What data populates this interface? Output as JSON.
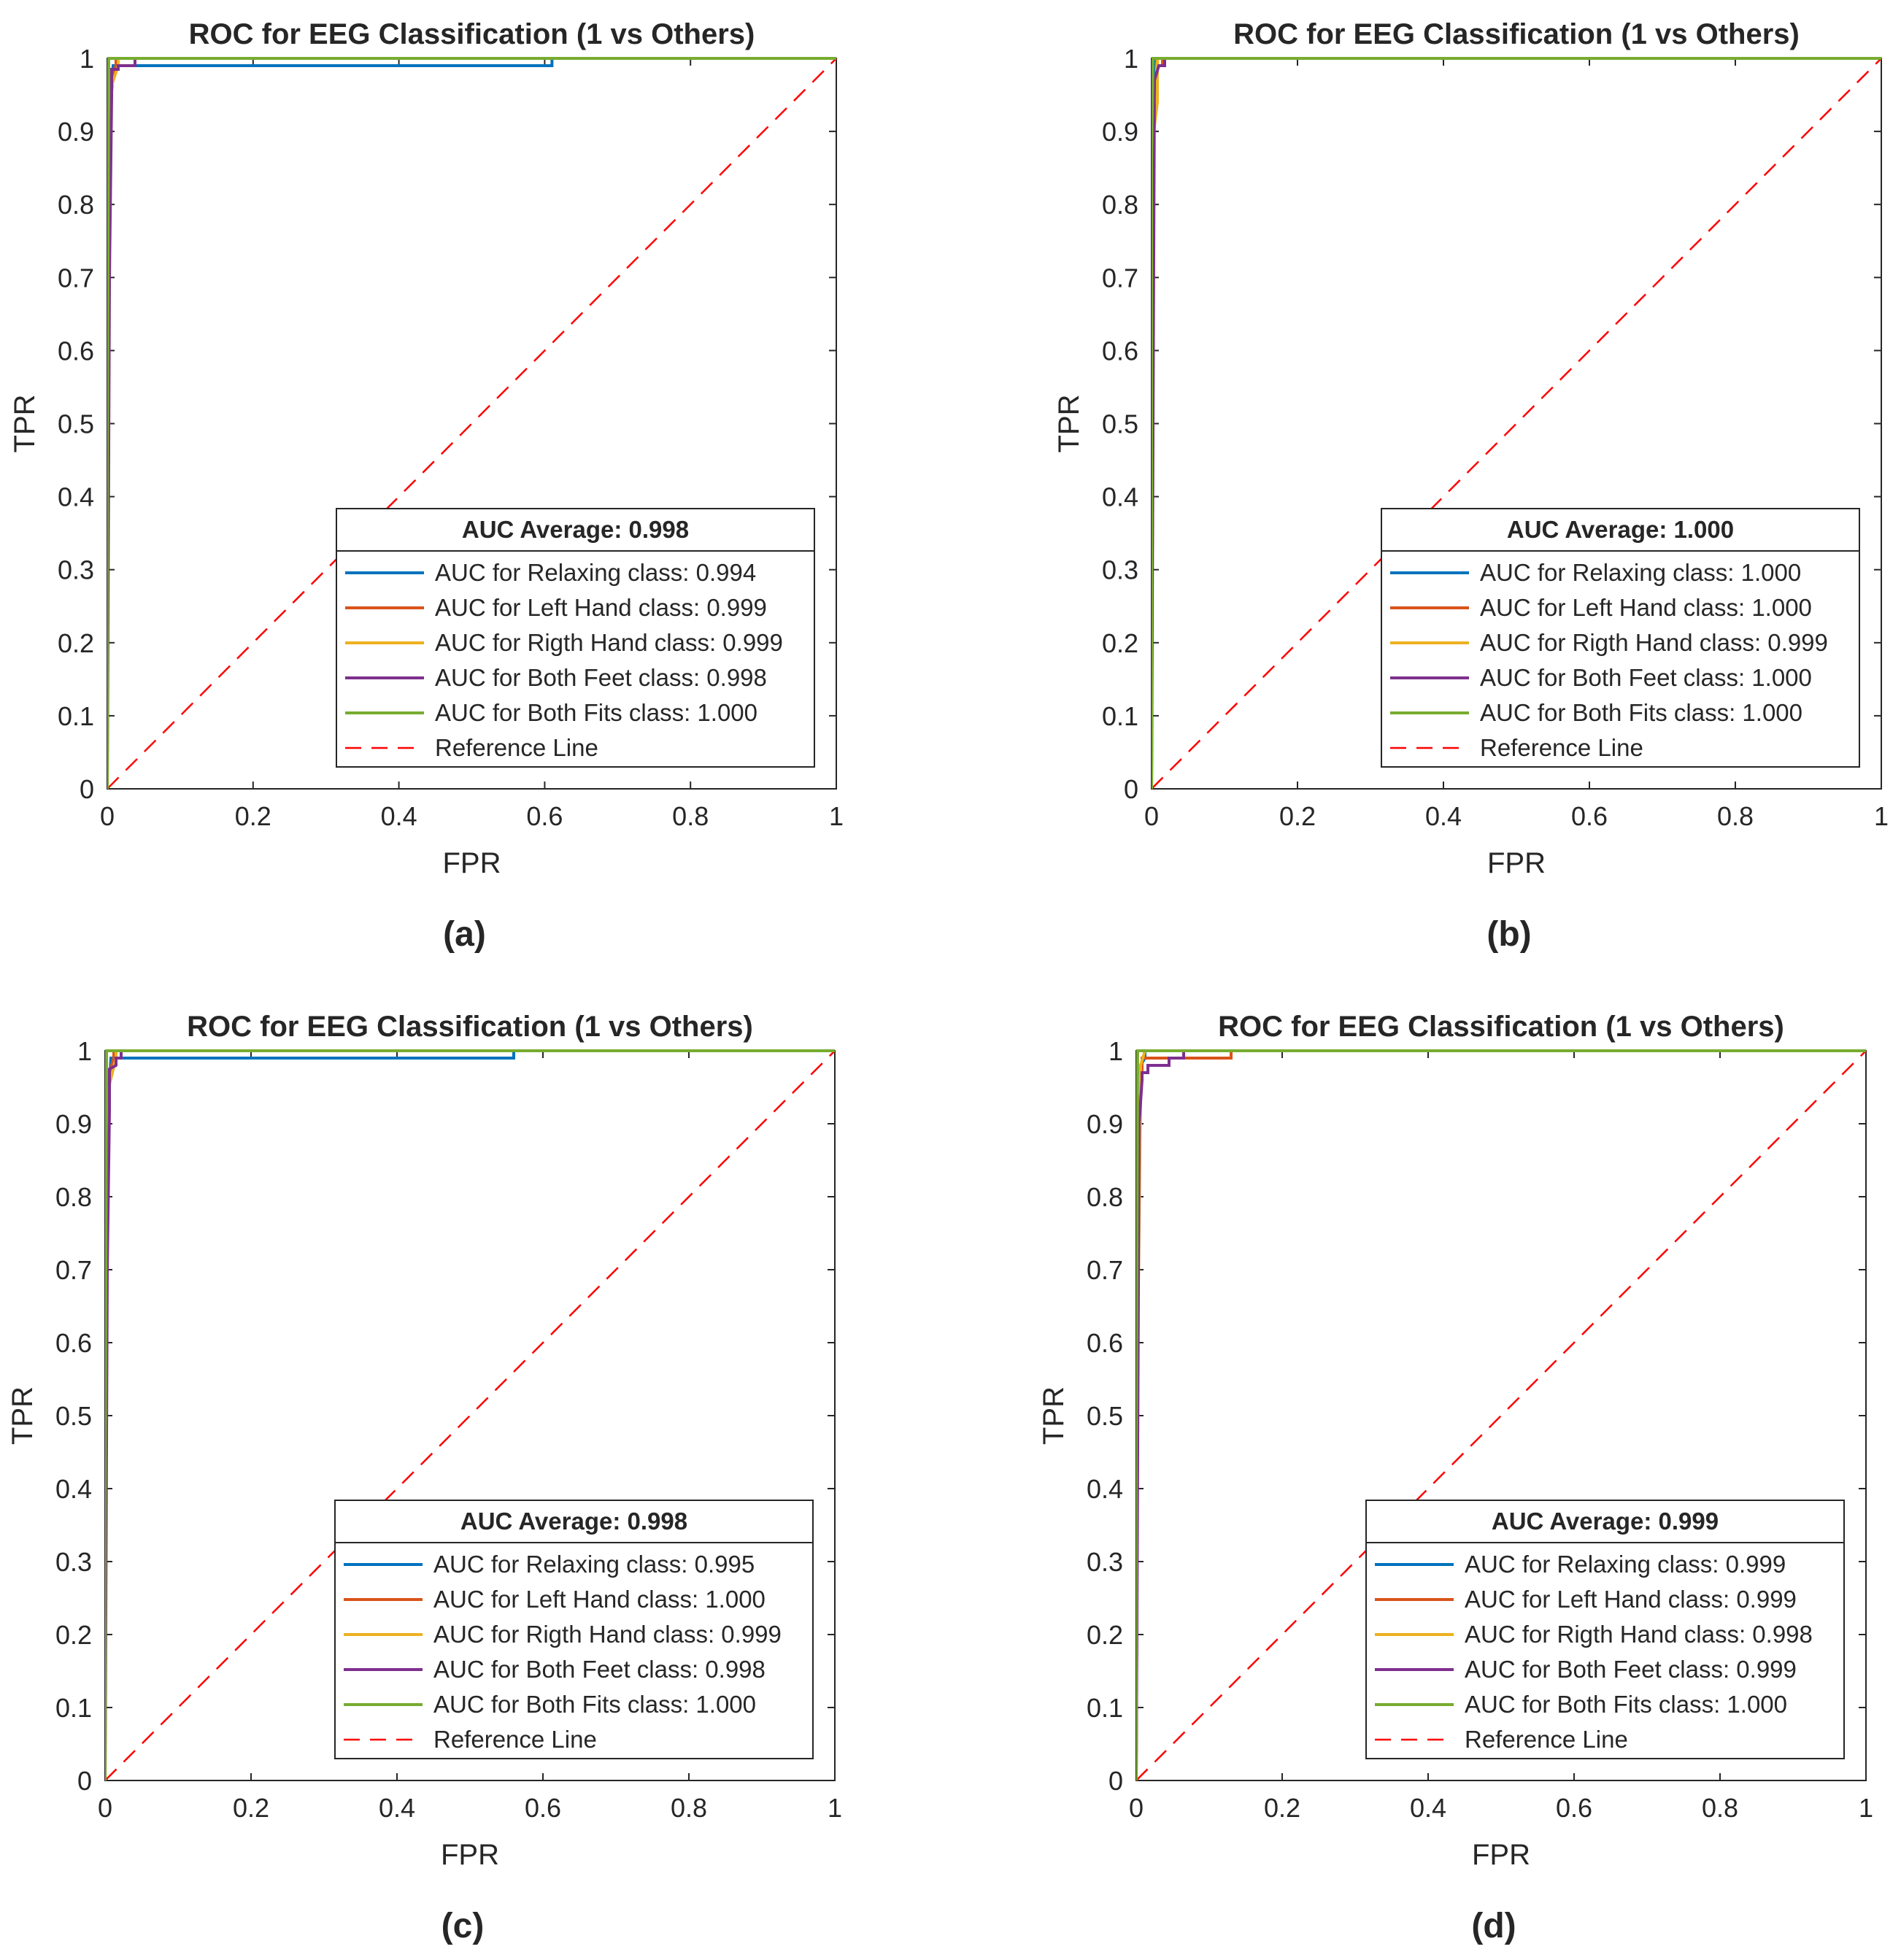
{
  "chart_data": [
    {
      "panel": "(a)",
      "type": "line",
      "title": "ROC for EEG Classification (1 vs Others)",
      "xlabel": "FPR",
      "ylabel": "TPR",
      "xlim": [
        0,
        1
      ],
      "ylim": [
        0,
        1
      ],
      "xticks": [
        "0",
        "0.2",
        "0.4",
        "0.6",
        "0.8",
        "1"
      ],
      "yticks": [
        "0",
        "0.1",
        "0.2",
        "0.3",
        "0.4",
        "0.5",
        "0.6",
        "0.7",
        "0.8",
        "0.9",
        "1"
      ],
      "legend_title": "AUC Average: 0.998",
      "legend_position": "bottom-right",
      "series": [
        {
          "name": "AUC for Relaxing class: 0.994",
          "color": "#0072BD",
          "x": [
            0,
            0,
            0.003,
            0.008,
            0.008,
            0.61,
            0.61,
            1
          ],
          "y": [
            0,
            0.45,
            0.9,
            0.99,
            0.99,
            0.99,
            1,
            1
          ]
        },
        {
          "name": "AUC for Left Hand class: 0.999",
          "color": "#D95319",
          "x": [
            0,
            0.002,
            0.006,
            0.012,
            0.012,
            1
          ],
          "y": [
            0,
            0.8,
            0.97,
            0.99,
            1,
            1
          ]
        },
        {
          "name": "AUC for Rigth Hand class: 0.999",
          "color": "#EDB120",
          "x": [
            0,
            0.002,
            0.005,
            0.015,
            0.015,
            1
          ],
          "y": [
            0,
            0.85,
            0.96,
            0.99,
            1,
            1
          ]
        },
        {
          "name": "AUC for Both Feet class: 0.998",
          "color": "#7E2F8E",
          "x": [
            0,
            0.003,
            0.006,
            0.006,
            0.015,
            0.015,
            0.038,
            0.038,
            1
          ],
          "y": [
            0,
            0.7,
            0.95,
            0.985,
            0.985,
            0.99,
            0.99,
            1,
            1
          ]
        },
        {
          "name": "AUC for Both Fits class: 1.000",
          "color": "#77AC30",
          "x": [
            0,
            0,
            0.002,
            1
          ],
          "y": [
            0,
            0.43,
            1,
            1
          ]
        }
      ],
      "reference_line": {
        "name": "Reference Line",
        "color": "#FF0000",
        "x": [
          0,
          1
        ],
        "y": [
          0,
          1
        ]
      }
    },
    {
      "panel": "(b)",
      "type": "line",
      "title": "ROC for EEG Classification (1 vs Others)",
      "xlabel": "FPR",
      "ylabel": "TPR",
      "xlim": [
        0,
        1
      ],
      "ylim": [
        0,
        1
      ],
      "xticks": [
        "0",
        "0.2",
        "0.4",
        "0.6",
        "0.8",
        "1"
      ],
      "yticks": [
        "0",
        "0.1",
        "0.2",
        "0.3",
        "0.4",
        "0.5",
        "0.6",
        "0.7",
        "0.8",
        "0.9",
        "1"
      ],
      "legend_title": "AUC Average: 1.000",
      "legend_position": "bottom-right",
      "series": [
        {
          "name": "AUC for Relaxing class: 1.000",
          "color": "#0072BD",
          "x": [
            0,
            0.002,
            0.004,
            1
          ],
          "y": [
            0,
            0.95,
            1,
            1
          ]
        },
        {
          "name": "AUC for Left Hand class: 1.000",
          "color": "#D95319",
          "x": [
            0,
            0.003,
            0.008,
            0.008,
            0.015,
            0.015,
            1
          ],
          "y": [
            0,
            0.95,
            0.98,
            0.99,
            0.99,
            1,
            1
          ]
        },
        {
          "name": "AUC for Rigth Hand class: 0.999",
          "color": "#EDB120",
          "x": [
            0,
            0.003,
            0.008,
            0.008,
            1
          ],
          "y": [
            0,
            0.9,
            0.94,
            1,
            1
          ]
        },
        {
          "name": "AUC for Both Feet class: 1.000",
          "color": "#7E2F8E",
          "x": [
            0,
            0.004,
            0.01,
            0.018,
            0.018,
            1
          ],
          "y": [
            0,
            0.97,
            0.99,
            0.99,
            1,
            1
          ]
        },
        {
          "name": "AUC for Both Fits class: 1.000",
          "color": "#77AC30",
          "x": [
            0,
            0,
            0.002,
            1
          ],
          "y": [
            0,
            0.86,
            1,
            1
          ]
        }
      ],
      "reference_line": {
        "name": "Reference Line",
        "color": "#FF0000",
        "x": [
          0,
          1
        ],
        "y": [
          0,
          1
        ]
      }
    },
    {
      "panel": "(c)",
      "type": "line",
      "title": "ROC for EEG Classification (1 vs Others)",
      "xlabel": "FPR",
      "ylabel": "TPR",
      "xlim": [
        0,
        1
      ],
      "ylim": [
        0,
        1
      ],
      "xticks": [
        "0",
        "0.2",
        "0.4",
        "0.6",
        "0.8",
        "1"
      ],
      "yticks": [
        "0",
        "0.1",
        "0.2",
        "0.3",
        "0.4",
        "0.5",
        "0.6",
        "0.7",
        "0.8",
        "0.9",
        "1"
      ],
      "legend_title": "AUC Average: 0.998",
      "legend_position": "bottom-right",
      "series": [
        {
          "name": "AUC for Relaxing class: 0.995",
          "color": "#0072BD",
          "x": [
            0,
            0,
            0.003,
            0.008,
            0.008,
            0.56,
            0.56,
            1
          ],
          "y": [
            0,
            0.4,
            0.9,
            0.99,
            0.99,
            0.99,
            1,
            1
          ]
        },
        {
          "name": "AUC for Left Hand class: 1.000",
          "color": "#D95319",
          "x": [
            0,
            0.002,
            0.006,
            0.012,
            0.012,
            1
          ],
          "y": [
            0,
            0.85,
            0.97,
            0.99,
            1,
            1
          ]
        },
        {
          "name": "AUC for Rigth Hand class: 0.999",
          "color": "#EDB120",
          "x": [
            0,
            0.002,
            0.005,
            0.015,
            0.015,
            1
          ],
          "y": [
            0,
            0.8,
            0.95,
            0.99,
            1,
            1
          ]
        },
        {
          "name": "AUC for Both Feet class: 0.998",
          "color": "#7E2F8E",
          "x": [
            0,
            0.003,
            0.006,
            0.006,
            0.015,
            0.015,
            0.022,
            0.022,
            1
          ],
          "y": [
            0,
            0.7,
            0.92,
            0.975,
            0.98,
            0.99,
            0.99,
            1,
            1
          ]
        },
        {
          "name": "AUC for Both Fits class: 1.000",
          "color": "#77AC30",
          "x": [
            0,
            0,
            0.002,
            1
          ],
          "y": [
            0,
            0.35,
            1,
            1
          ]
        }
      ],
      "reference_line": {
        "name": "Reference Line",
        "color": "#FF0000",
        "x": [
          0,
          1
        ],
        "y": [
          0,
          1
        ]
      }
    },
    {
      "panel": "(d)",
      "type": "line",
      "title": "ROC for EEG Classification (1 vs Others)",
      "xlabel": "FPR",
      "ylabel": "TPR",
      "xlim": [
        0,
        1
      ],
      "ylim": [
        0,
        1
      ],
      "xticks": [
        "0",
        "0.2",
        "0.4",
        "0.6",
        "0.8",
        "1"
      ],
      "yticks": [
        "0",
        "0.1",
        "0.2",
        "0.3",
        "0.4",
        "0.5",
        "0.6",
        "0.7",
        "0.8",
        "0.9",
        "1"
      ],
      "legend_title": "AUC Average: 0.999",
      "legend_position": "bottom-right",
      "series": [
        {
          "name": "AUC for Relaxing class: 0.999",
          "color": "#0072BD",
          "x": [
            0,
            0.003,
            0.006,
            0.006,
            0.012,
            0.012,
            1
          ],
          "y": [
            0,
            0.9,
            0.94,
            0.98,
            0.99,
            1,
            1
          ]
        },
        {
          "name": "AUC for Left Hand class: 0.999",
          "color": "#D95319",
          "x": [
            0,
            0.003,
            0.008,
            0.008,
            0.13,
            0.13,
            1
          ],
          "y": [
            0,
            0.9,
            0.97,
            0.99,
            0.99,
            1,
            1
          ]
        },
        {
          "name": "AUC for Rigth Hand class: 0.998",
          "color": "#EDB120",
          "x": [
            0,
            0.002,
            0.006,
            0.006,
            0.012,
            1
          ],
          "y": [
            0,
            0.6,
            0.93,
            0.98,
            1,
            1
          ]
        },
        {
          "name": "AUC for Both Feet class: 0.999",
          "color": "#7E2F8E",
          "x": [
            0,
            0.004,
            0.008,
            0.008,
            0.016,
            0.016,
            0.045,
            0.045,
            0.065,
            0.065,
            1
          ],
          "y": [
            0,
            0.9,
            0.96,
            0.97,
            0.97,
            0.98,
            0.98,
            0.99,
            0.99,
            1,
            1
          ]
        },
        {
          "name": "AUC for Both Fits class: 1.000",
          "color": "#77AC30",
          "x": [
            0,
            0,
            0.002,
            1
          ],
          "y": [
            0,
            0.45,
            1,
            1
          ]
        }
      ],
      "reference_line": {
        "name": "Reference Line",
        "color": "#FF0000",
        "x": [
          0,
          1
        ],
        "y": [
          0,
          1
        ]
      }
    }
  ]
}
